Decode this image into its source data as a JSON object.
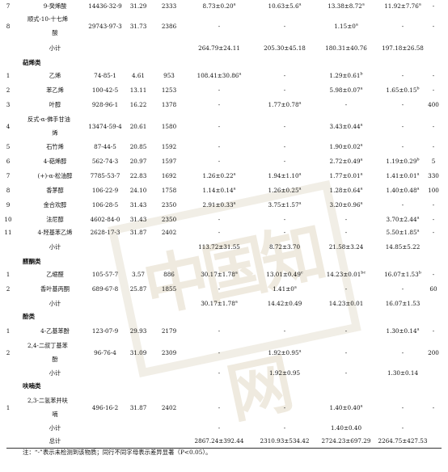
{
  "rows": [
    {
      "id": "r0",
      "top": 0,
      "no": "7",
      "name": "9-癸烯酸",
      "cas": "14436-32-9",
      "rt": "31.29",
      "ri": "2333",
      "c1": "8.73±0.20",
      "s1": "a",
      "c2": "10.63±5.6",
      "s2": "a",
      "c3": "13.38±8.72",
      "s3": "a",
      "c4": "11.92±7.76",
      "s4": "a",
      "c5": "-"
    },
    {
      "id": "r1",
      "top": 16,
      "no": "8",
      "name": "顺式-10-十七烯",
      "name2": "酸",
      "cas": "29743-97-3",
      "rt": "31.73",
      "ri": "2386",
      "c1": "-",
      "s1": "",
      "c2": "-",
      "s2": "",
      "c3": "1.15±0",
      "s3": "a",
      "c4": "-",
      "s4": "",
      "c5": "-"
    },
    {
      "id": "r2",
      "top": 52,
      "no": "",
      "name": "小计",
      "cas": "",
      "rt": "",
      "ri": "",
      "c1": "264.79±24.11",
      "s1": "",
      "c2": "205.30±45.18",
      "s2": "",
      "c3": "180.31±40.76",
      "s3": "",
      "c4": "197.18±26.58",
      "s4": "",
      "c5": ""
    },
    {
      "id": "sec1",
      "top": 70,
      "section": "萜烯类"
    },
    {
      "id": "r3",
      "top": 86,
      "no": "1",
      "name": "乙烯",
      "cas": "74-85-1",
      "rt": "4.61",
      "ri": "953",
      "c1": "108.41±30.86",
      "s1": "a",
      "c2": "-",
      "s2": "",
      "c3": "1.29±0.61",
      "s3": "b",
      "c4": "-",
      "s4": "",
      "c5": "-"
    },
    {
      "id": "r4",
      "top": 104,
      "no": "2",
      "name": "苯乙烯",
      "cas": "100-42-5",
      "rt": "13.11",
      "ri": "1253",
      "c1": "-",
      "s1": "",
      "c2": "-",
      "s2": "",
      "c3": "5.98±0.07",
      "s3": "a",
      "c4": "1.65±0.15",
      "s4": "b",
      "c5": "-"
    },
    {
      "id": "r5",
      "top": 122,
      "no": "3",
      "name": "叶醇",
      "cas": "928-96-1",
      "rt": "16.22",
      "ri": "1378",
      "c1": "-",
      "s1": "",
      "c2": "1.77±0.78",
      "s2": "a",
      "c3": "-",
      "s3": "",
      "c4": "-",
      "s4": "",
      "c5": "400"
    },
    {
      "id": "r6",
      "top": 140,
      "no": "4",
      "name": "反式-α-佛手甘油",
      "name2": "烯",
      "cas": "13474-59-4",
      "rt": "20.61",
      "ri": "1580",
      "c1": "-",
      "s1": "",
      "c2": "-",
      "s2": "",
      "c3": "3.43±0.44",
      "s3": "a",
      "c4": "-",
      "s4": "",
      "c5": "-"
    },
    {
      "id": "r7",
      "top": 174,
      "no": "5",
      "name": "石竹烯",
      "cas": "87-44-5",
      "rt": "20.85",
      "ri": "1592",
      "c1": "-",
      "s1": "",
      "c2": "-",
      "s2": "",
      "c3": "1.90±0.02",
      "s3": "a",
      "c4": "-",
      "s4": "",
      "c5": "-"
    },
    {
      "id": "r8",
      "top": 192,
      "no": "6",
      "name": "4-萜烯醇",
      "cas": "562-74-3",
      "rt": "20.97",
      "ri": "1597",
      "c1": "-",
      "s1": "",
      "c2": "-",
      "s2": "",
      "c3": "2.72±0.49",
      "s3": "a",
      "c4": "1.19±0.29",
      "s4": "b",
      "c5": "5"
    },
    {
      "id": "r9",
      "top": 210,
      "no": "7",
      "name": "(+)-α-松油醇",
      "cas": "7785-53-7",
      "rt": "22.83",
      "ri": "1692",
      "c1": "1.26±0.22",
      "s1": "a",
      "c2": "1.94±1.10",
      "s2": "a",
      "c3": "1.77±0.01",
      "s3": "a",
      "c4": "1.41±0.01",
      "s4": "a",
      "c5": "330"
    },
    {
      "id": "r10",
      "top": 228,
      "no": "8",
      "name": "香茅醇",
      "cas": "106-22-9",
      "rt": "24.10",
      "ri": "1758",
      "c1": "1.14±0.14",
      "s1": "a",
      "c2": "1.26±0.25",
      "s2": "a",
      "c3": "1.28±0.64",
      "s3": "a",
      "c4": "1.40±0.48",
      "s4": "a",
      "c5": "100"
    },
    {
      "id": "r11",
      "top": 246,
      "no": "9",
      "name": "金合欢醇",
      "cas": "106-28-5",
      "rt": "31.43",
      "ri": "2350",
      "c1": "2.91±0.33",
      "s1": "a",
      "c2": "3.75±1.57",
      "s2": "a",
      "c3": "3.20±0.96",
      "s3": "a",
      "c4": "-",
      "s4": "",
      "c5": "-"
    },
    {
      "id": "r12",
      "top": 264,
      "no": "10",
      "name": "法尼醇",
      "cas": "4602-84-0",
      "rt": "31.43",
      "ri": "2350",
      "c1": "-",
      "s1": "",
      "c2": "-",
      "s2": "",
      "c3": "-",
      "s3": "",
      "c4": "3.70±2.44",
      "s4": "a",
      "c5": "-"
    },
    {
      "id": "r13",
      "top": 280,
      "no": "11",
      "name": "4-羟基苯乙烯",
      "cas": "2628-17-3",
      "rt": "31.87",
      "ri": "2402",
      "c1": "-",
      "s1": "",
      "c2": "-",
      "s2": "",
      "c3": "-",
      "s3": "",
      "c4": "5.50±1.85",
      "s4": "a",
      "c5": "-"
    },
    {
      "id": "r14",
      "top": 298,
      "no": "",
      "name": "小计",
      "cas": "",
      "rt": "",
      "ri": "",
      "c1": "113.72±31.55",
      "s1": "",
      "c2": "8.72±3.70",
      "s2": "",
      "c3": "21.58±3.24",
      "s3": "",
      "c4": "14.85±5.22",
      "s4": "",
      "c5": ""
    },
    {
      "id": "sec2",
      "top": 316,
      "section": "醛酮类"
    },
    {
      "id": "r15",
      "top": 332,
      "no": "1",
      "name": "乙缩醛",
      "cas": "105-57-7",
      "rt": "3.57",
      "ri": "886",
      "c1": "30.17±1.78",
      "s1": "a",
      "c2": "13.01±0.49",
      "s2": "c",
      "c3": "14.23±0.01",
      "s3": "bc",
      "c4": "16.07±1.53",
      "s4": "b",
      "c5": "-"
    },
    {
      "id": "r16",
      "top": 350,
      "no": "2",
      "name": "香叶基丙酮",
      "cas": "689-67-8",
      "rt": "25.87",
      "ri": "1855",
      "c1": "-",
      "s1": "",
      "c2": "1.41±0",
      "s2": "a",
      "c3": "-",
      "s3": "",
      "c4": "-",
      "s4": "",
      "c5": "60"
    },
    {
      "id": "r17",
      "top": 368,
      "no": "",
      "name": "小计",
      "cas": "",
      "rt": "",
      "ri": "",
      "c1": "30.17±1.78",
      "s1": "a",
      "c2": "14.42±0.49",
      "s2": "",
      "c3": "14.23±0.01",
      "s3": "",
      "c4": "16.07±1.53",
      "s4": "",
      "c5": ""
    },
    {
      "id": "sec3",
      "top": 384,
      "section": "酚类"
    },
    {
      "id": "r18",
      "top": 402,
      "no": "1",
      "name": "4-乙基苯酚",
      "cas": "123-07-9",
      "rt": "29.93",
      "ri": "2179",
      "c1": "-",
      "s1": "",
      "c2": "-",
      "s2": "",
      "c3": "-",
      "s3": "",
      "c4": "1.30±0.14",
      "s4": "a",
      "c5": "-"
    },
    {
      "id": "r19",
      "top": 420,
      "no": "2",
      "name": "2,4-二叔丁基苯",
      "name2": "酚",
      "cas": "96-76-4",
      "rt": "31.09",
      "ri": "2309",
      "c1": "-",
      "s1": "",
      "c2": "1.92±0.95",
      "s2": "a",
      "c3": "-",
      "s3": "",
      "c4": "-",
      "s4": "",
      "c5": "200"
    },
    {
      "id": "r20",
      "top": 454,
      "no": "",
      "name": "小计",
      "cas": "",
      "rt": "",
      "ri": "",
      "c1": "-",
      "s1": "",
      "c2": "1.92±0.95",
      "s2": "",
      "c3": "-",
      "s3": "",
      "c4": "1.30±0.14",
      "s4": "",
      "c5": ""
    },
    {
      "id": "sec4",
      "top": 470,
      "section": "呋喃类"
    },
    {
      "id": "r21",
      "top": 488,
      "no": "1",
      "name": "2,3-二氢苯并呋",
      "name2": "喃",
      "cas": "496-16-2",
      "rt": "31.87",
      "ri": "2402",
      "c1": "-",
      "s1": "",
      "c2": "-",
      "s2": "",
      "c3": "1.40±0.40",
      "s3": "a",
      "c4": "-",
      "s4": "",
      "c5": "-"
    },
    {
      "id": "r22",
      "top": 522,
      "no": "",
      "name": "小计",
      "cas": "",
      "rt": "",
      "ri": "",
      "c1": "-",
      "s1": "",
      "c2": "-",
      "s2": "",
      "c3": "1.40±0.40",
      "s3": "",
      "c4": "-",
      "s4": "",
      "c5": ""
    },
    {
      "id": "r23",
      "top": 538,
      "no": "",
      "name": "总计",
      "cas": "",
      "rt": "",
      "ri": "",
      "c1": "2867.24±392.44",
      "s1": "",
      "c2": "2310.93±534.42",
      "s2": "",
      "c3": "2724.23±697.29",
      "s3": "",
      "c4": "2264.75±427.53",
      "s4": "",
      "c5": ""
    }
  ],
  "note": "注：“-”表示未检测到该物质；同行不同字母表示差异显著（P<0.05）。",
  "watermark": "中国知网"
}
